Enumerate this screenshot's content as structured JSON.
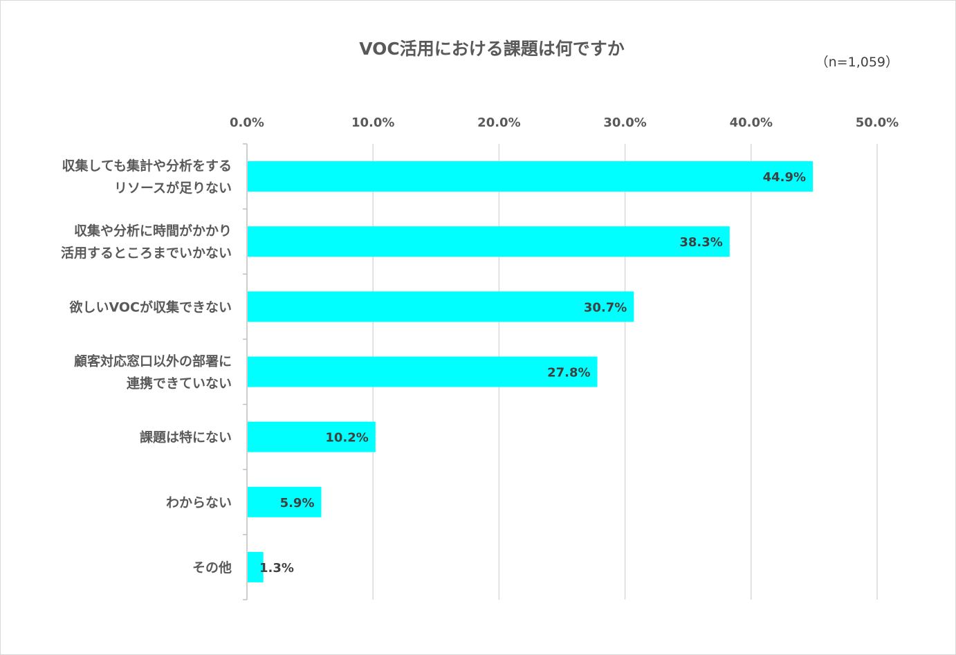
{
  "chart_data": {
    "type": "bar",
    "orientation": "horizontal",
    "title": "VOC活用における課題は何ですか",
    "note": "（n=1,059）",
    "xlim": [
      0,
      50
    ],
    "ticks": [
      "0.0%",
      "10.0%",
      "20.0%",
      "30.0%",
      "40.0%",
      "50.0%"
    ],
    "tick_values": [
      0,
      10,
      20,
      30,
      40,
      50
    ],
    "axis_position": "top",
    "grid": true,
    "bar_color": "#00FFFF",
    "categories": [
      [
        "収集しても集計や分析をする",
        "リソースが足りない"
      ],
      [
        "収集や分析に時間がかかり",
        "活用するところまでいかない"
      ],
      [
        "欲しいVOCが収集できない"
      ],
      [
        "顧客対応窓口以外の部署に",
        "連携できていない"
      ],
      [
        "課題は特にない"
      ],
      [
        "わからない"
      ],
      [
        "その他"
      ]
    ],
    "values": [
      44.9,
      38.3,
      30.7,
      27.8,
      10.2,
      5.9,
      1.3
    ],
    "value_labels": [
      "44.9%",
      "38.3%",
      "30.7%",
      "27.8%",
      "10.2%",
      "5.9%",
      "1.3%"
    ]
  }
}
